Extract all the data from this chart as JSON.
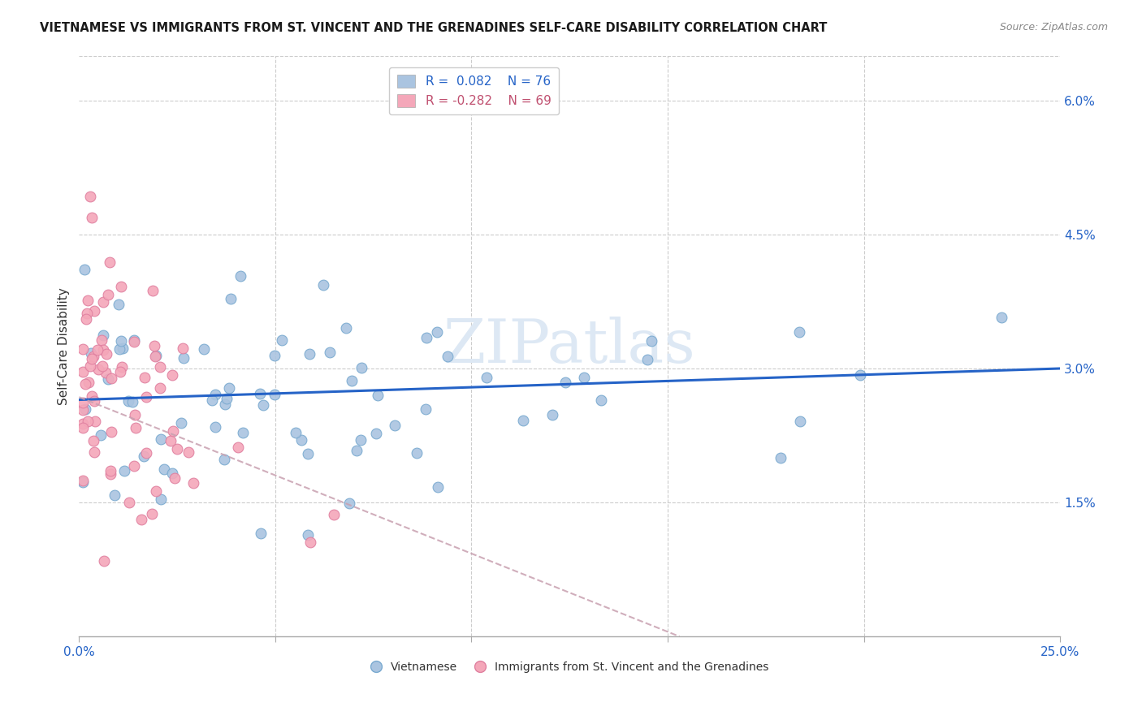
{
  "title": "VIETNAMESE VS IMMIGRANTS FROM ST. VINCENT AND THE GRENADINES SELF-CARE DISABILITY CORRELATION CHART",
  "source": "Source: ZipAtlas.com",
  "ylabel": "Self-Care Disability",
  "xlim": [
    0.0,
    0.25
  ],
  "ylim": [
    0.0,
    0.065
  ],
  "blue_color": "#aac4e0",
  "pink_color": "#f4a7b9",
  "blue_line_color": "#2563c7",
  "pink_line_color": "#c8a0b0",
  "watermark": "ZIPatlas",
  "legend_blue_label": "R =  0.082    N = 76",
  "legend_pink_label": "R = -0.282    N = 69",
  "bottom_legend_blue": "Vietnamese",
  "bottom_legend_pink": "Immigrants from St. Vincent and the Grenadines",
  "blue_trend_start_y": 0.0265,
  "blue_trend_end_y": 0.03,
  "pink_trend_start_y": 0.0268,
  "pink_trend_slope": -0.175
}
